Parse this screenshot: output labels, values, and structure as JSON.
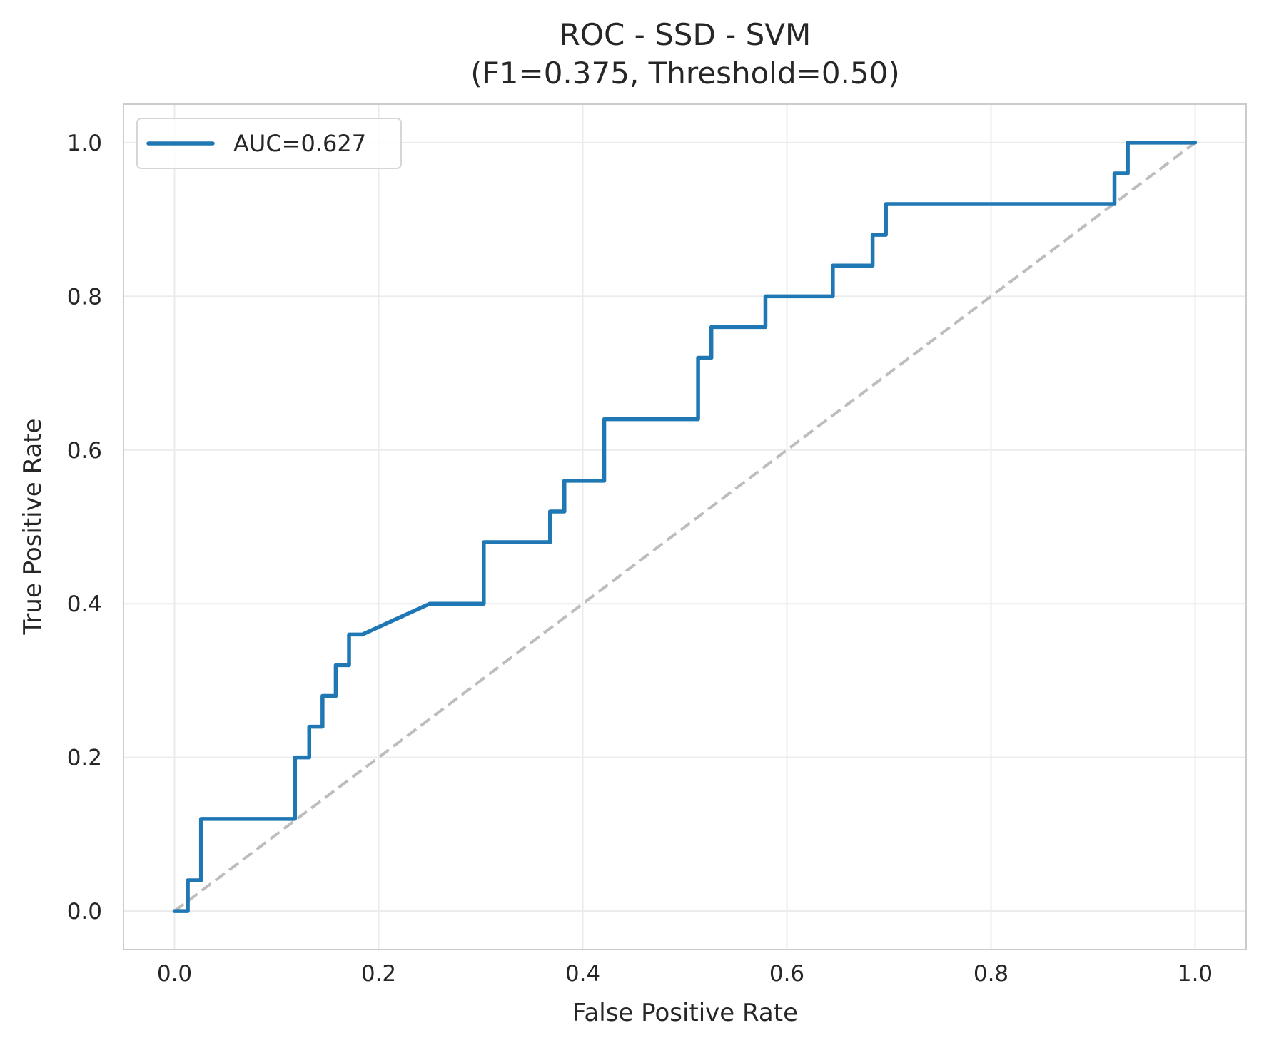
{
  "chart_data": {
    "type": "line",
    "title_line1": "ROC - SSD - SVM",
    "title_line2": "(F1=0.375, Threshold=0.50)",
    "xlabel": "False Positive Rate",
    "ylabel": "True Positive Rate",
    "xlim": [
      -0.05,
      1.05
    ],
    "ylim": [
      -0.05,
      1.05
    ],
    "xticks": [
      "0.0",
      "0.2",
      "0.4",
      "0.6",
      "0.8",
      "1.0"
    ],
    "yticks": [
      "0.0",
      "0.2",
      "0.4",
      "0.6",
      "0.8",
      "1.0"
    ],
    "grid": true,
    "legend_position": "top-left",
    "series": [
      {
        "name": "AUC=0.627",
        "color": "#1f77b4",
        "x": [
          0.0,
          0.013,
          0.013,
          0.026,
          0.026,
          0.118,
          0.118,
          0.132,
          0.132,
          0.145,
          0.145,
          0.158,
          0.158,
          0.171,
          0.171,
          0.184,
          0.25,
          0.303,
          0.303,
          0.368,
          0.368,
          0.382,
          0.382,
          0.421,
          0.421,
          0.513,
          0.513,
          0.526,
          0.526,
          0.579,
          0.579,
          0.645,
          0.645,
          0.684,
          0.684,
          0.697,
          0.697,
          0.921,
          0.921,
          0.934,
          0.934,
          1.0
        ],
        "y": [
          0.0,
          0.0,
          0.04,
          0.04,
          0.12,
          0.12,
          0.2,
          0.2,
          0.24,
          0.24,
          0.28,
          0.28,
          0.32,
          0.32,
          0.36,
          0.36,
          0.4,
          0.4,
          0.48,
          0.48,
          0.52,
          0.52,
          0.56,
          0.56,
          0.64,
          0.64,
          0.72,
          0.72,
          0.76,
          0.76,
          0.8,
          0.8,
          0.84,
          0.84,
          0.88,
          0.88,
          0.92,
          0.92,
          0.96,
          0.96,
          1.0,
          1.0
        ]
      }
    ],
    "reference_line": {
      "x": [
        0.0,
        1.0
      ],
      "y": [
        0.0,
        1.0
      ],
      "color": "#bdbdbd",
      "style": "dashed"
    }
  }
}
